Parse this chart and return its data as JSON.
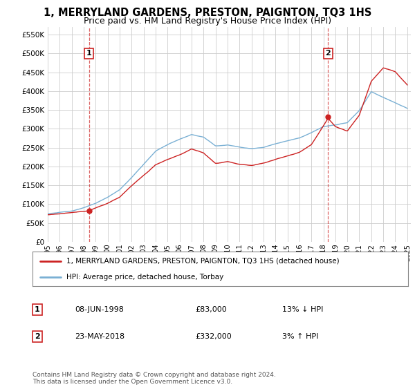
{
  "title": "1, MERRYLAND GARDENS, PRESTON, PAIGNTON, TQ3 1HS",
  "subtitle": "Price paid vs. HM Land Registry's House Price Index (HPI)",
  "ylabel_ticks": [
    "£0",
    "£50K",
    "£100K",
    "£150K",
    "£200K",
    "£250K",
    "£300K",
    "£350K",
    "£400K",
    "£450K",
    "£500K",
    "£550K"
  ],
  "ytick_vals": [
    0,
    50000,
    100000,
    150000,
    200000,
    250000,
    300000,
    350000,
    400000,
    450000,
    500000,
    550000
  ],
  "ylim": [
    0,
    570000
  ],
  "xlim_start": 1995.0,
  "xlim_end": 2025.3,
  "red_line_color": "#cc2222",
  "blue_line_color": "#7ab0d4",
  "marker1_x": 1998.44,
  "marker1_y": 83000,
  "marker2_x": 2018.39,
  "marker2_y": 332000,
  "legend_red": "1, MERRYLAND GARDENS, PRESTON, PAIGNTON, TQ3 1HS (detached house)",
  "legend_blue": "HPI: Average price, detached house, Torbay",
  "annotation1_num": "1",
  "annotation1_date": "08-JUN-1998",
  "annotation1_price": "£83,000",
  "annotation1_hpi": "13% ↓ HPI",
  "annotation2_num": "2",
  "annotation2_date": "23-MAY-2018",
  "annotation2_price": "£332,000",
  "annotation2_hpi": "3% ↑ HPI",
  "footer": "Contains HM Land Registry data © Crown copyright and database right 2024.\nThis data is licensed under the Open Government Licence v3.0.",
  "background_color": "#ffffff",
  "grid_color": "#cccccc",
  "title_fontsize": 10.5,
  "subtitle_fontsize": 9
}
